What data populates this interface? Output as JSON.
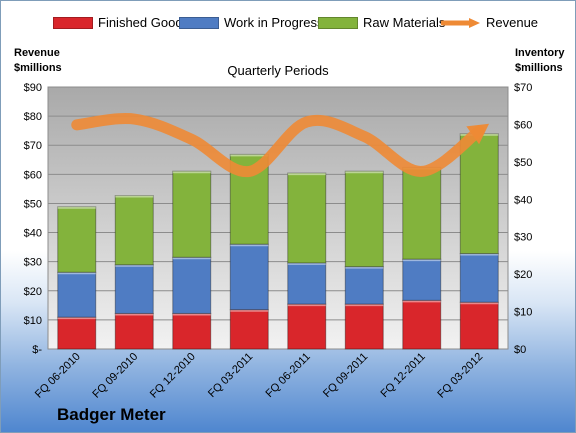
{
  "legend": {
    "finished": "Finished Goods",
    "wip": "Work in Progress",
    "raw": "Raw Materials",
    "revenue": "Revenue"
  },
  "left_axis_title": [
    "Revenue",
    "$millions"
  ],
  "right_axis_title": [
    "Inventory",
    "$millions"
  ],
  "plot_title": "Quarterly Periods",
  "company": "Badger Meter",
  "colors": {
    "finished": "#d9262b",
    "wip": "#4f7cc3",
    "raw": "#83b33c",
    "revenue": "#ee8a35"
  },
  "chart_data": {
    "type": "bar",
    "stacked": true,
    "title": "Quarterly Periods",
    "categories": [
      "FQ 06-2010",
      "FQ 09-2010",
      "FQ 12-2010",
      "FQ 03-2011",
      "FQ 06-2011",
      "FQ 09-2011",
      "FQ 12-2011",
      "FQ 03-2012"
    ],
    "series": [
      {
        "name": "Finished Goods",
        "axis": "right",
        "values": [
          8.5,
          9.5,
          9.5,
          10.5,
          12,
          12,
          13,
          12.5
        ]
      },
      {
        "name": "Work in Progress",
        "axis": "right",
        "values": [
          12,
          13,
          15,
          17.5,
          11,
          10,
          11,
          13
        ]
      },
      {
        "name": "Raw Materials",
        "axis": "right",
        "values": [
          17.5,
          18.5,
          23,
          24,
          24,
          25.5,
          24.5,
          32
        ]
      },
      {
        "name": "Revenue",
        "axis": "left",
        "type": "line",
        "values": [
          77,
          79,
          72,
          61,
          78,
          73,
          61,
          75
        ]
      }
    ],
    "y_left": {
      "label": "Revenue $millions",
      "range": [
        0,
        90
      ],
      "ticks": [
        0,
        10,
        20,
        30,
        40,
        50,
        60,
        70,
        80,
        90
      ],
      "tick_labels": [
        "$-",
        "$10",
        "$20",
        "$30",
        "$40",
        "$50",
        "$60",
        "$70",
        "$80",
        "$90"
      ]
    },
    "y_right": {
      "label": "Inventory $millions",
      "range": [
        0,
        70
      ],
      "ticks": [
        0,
        10,
        20,
        30,
        40,
        50,
        60,
        70
      ],
      "tick_labels": [
        "$0",
        "$10",
        "$20",
        "$30",
        "$40",
        "$50",
        "$60",
        "$70"
      ]
    },
    "grid": true,
    "legend_position": "top"
  }
}
